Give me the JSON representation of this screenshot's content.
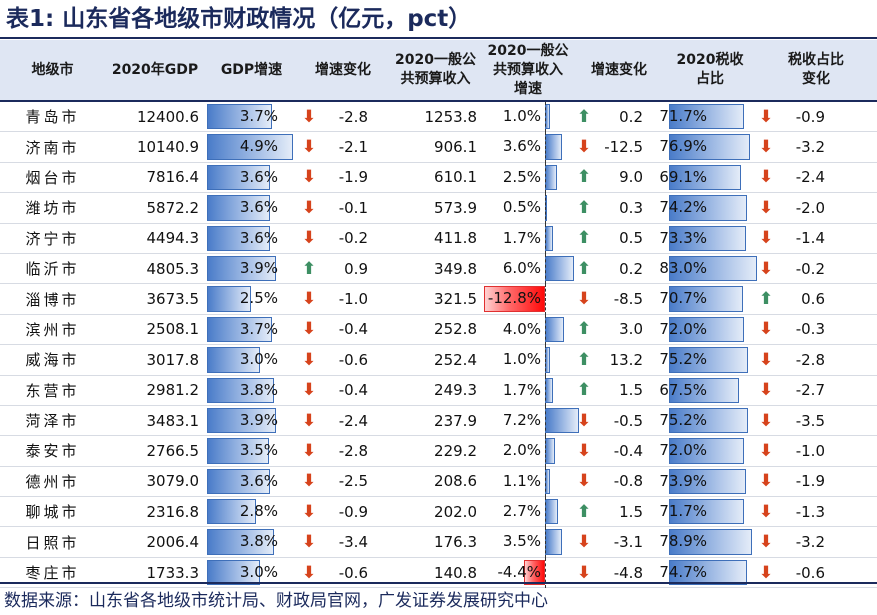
{
  "title": "表1:  山东省各地级市财政情况（亿元，pct）",
  "headers": {
    "city": "地级市",
    "gdp": "2020年GDP",
    "gdp_growth": "GDP增速",
    "gdp_growth_change": "增速变化",
    "revenue_l1": "2020一般公",
    "revenue_l2": "共预算收入",
    "rev_growth_l1": "2020一般公",
    "rev_growth_l2": "共预算收入",
    "rev_growth_l3": "增速",
    "rev_growth_change": "增速变化",
    "tax_share_l1": "2020税收",
    "tax_share_l2": "占比",
    "tax_change_l1": "税收占比",
    "tax_change_l2": "变化"
  },
  "rows": [
    {
      "city": "青岛市",
      "gdp": "12400.6",
      "gdp_growth": "3.7%",
      "gdp_growth_v": 3.7,
      "gdp_chg": "-2.8",
      "gdp_chg_dir": "down",
      "revenue": "1253.8",
      "rev_growth": "1.0%",
      "rev_growth_v": 1.0,
      "rev_chg": "0.2",
      "rev_chg_dir": "up",
      "tax_share": "71.7%",
      "tax_share_v": 71.7,
      "tax_chg": "-0.9",
      "tax_chg_dir": "down"
    },
    {
      "city": "济南市",
      "gdp": "10140.9",
      "gdp_growth": "4.9%",
      "gdp_growth_v": 4.9,
      "gdp_chg": "-2.1",
      "gdp_chg_dir": "down",
      "revenue": "906.1",
      "rev_growth": "3.6%",
      "rev_growth_v": 3.6,
      "rev_chg": "-12.5",
      "rev_chg_dir": "down",
      "tax_share": "76.9%",
      "tax_share_v": 76.9,
      "tax_chg": "-3.2",
      "tax_chg_dir": "down"
    },
    {
      "city": "烟台市",
      "gdp": "7816.4",
      "gdp_growth": "3.6%",
      "gdp_growth_v": 3.6,
      "gdp_chg": "-1.9",
      "gdp_chg_dir": "down",
      "revenue": "610.1",
      "rev_growth": "2.5%",
      "rev_growth_v": 2.5,
      "rev_chg": "9.0",
      "rev_chg_dir": "up",
      "tax_share": "69.1%",
      "tax_share_v": 69.1,
      "tax_chg": "-2.4",
      "tax_chg_dir": "down"
    },
    {
      "city": "潍坊市",
      "gdp": "5872.2",
      "gdp_growth": "3.6%",
      "gdp_growth_v": 3.6,
      "gdp_chg": "-0.1",
      "gdp_chg_dir": "down",
      "revenue": "573.9",
      "rev_growth": "0.5%",
      "rev_growth_v": 0.5,
      "rev_chg": "0.3",
      "rev_chg_dir": "up",
      "tax_share": "74.2%",
      "tax_share_v": 74.2,
      "tax_chg": "-2.0",
      "tax_chg_dir": "down"
    },
    {
      "city": "济宁市",
      "gdp": "4494.3",
      "gdp_growth": "3.6%",
      "gdp_growth_v": 3.6,
      "gdp_chg": "-0.2",
      "gdp_chg_dir": "down",
      "revenue": "411.8",
      "rev_growth": "1.7%",
      "rev_growth_v": 1.7,
      "rev_chg": "0.5",
      "rev_chg_dir": "up",
      "tax_share": "73.3%",
      "tax_share_v": 73.3,
      "tax_chg": "-1.4",
      "tax_chg_dir": "down"
    },
    {
      "city": "临沂市",
      "gdp": "4805.3",
      "gdp_growth": "3.9%",
      "gdp_growth_v": 3.9,
      "gdp_chg": "0.9",
      "gdp_chg_dir": "up",
      "revenue": "349.8",
      "rev_growth": "6.0%",
      "rev_growth_v": 6.0,
      "rev_chg": "0.2",
      "rev_chg_dir": "up",
      "tax_share": "83.0%",
      "tax_share_v": 83.0,
      "tax_chg": "-0.2",
      "tax_chg_dir": "down"
    },
    {
      "city": "淄博市",
      "gdp": "3673.5",
      "gdp_growth": "2.5%",
      "gdp_growth_v": 2.5,
      "gdp_chg": "-1.0",
      "gdp_chg_dir": "down",
      "revenue": "321.5",
      "rev_growth": "-12.8%",
      "rev_growth_v": -12.8,
      "rev_chg": "-8.5",
      "rev_chg_dir": "down",
      "tax_share": "70.7%",
      "tax_share_v": 70.7,
      "tax_chg": "0.6",
      "tax_chg_dir": "up"
    },
    {
      "city": "滨州市",
      "gdp": "2508.1",
      "gdp_growth": "3.7%",
      "gdp_growth_v": 3.7,
      "gdp_chg": "-0.4",
      "gdp_chg_dir": "down",
      "revenue": "252.8",
      "rev_growth": "4.0%",
      "rev_growth_v": 4.0,
      "rev_chg": "3.0",
      "rev_chg_dir": "up",
      "tax_share": "72.0%",
      "tax_share_v": 72.0,
      "tax_chg": "-0.3",
      "tax_chg_dir": "down"
    },
    {
      "city": "威海市",
      "gdp": "3017.8",
      "gdp_growth": "3.0%",
      "gdp_growth_v": 3.0,
      "gdp_chg": "-0.6",
      "gdp_chg_dir": "down",
      "revenue": "252.4",
      "rev_growth": "1.0%",
      "rev_growth_v": 1.0,
      "rev_chg": "13.2",
      "rev_chg_dir": "up",
      "tax_share": "75.2%",
      "tax_share_v": 75.2,
      "tax_chg": "-2.8",
      "tax_chg_dir": "down"
    },
    {
      "city": "东营市",
      "gdp": "2981.2",
      "gdp_growth": "3.8%",
      "gdp_growth_v": 3.8,
      "gdp_chg": "-0.4",
      "gdp_chg_dir": "down",
      "revenue": "249.3",
      "rev_growth": "1.7%",
      "rev_growth_v": 1.7,
      "rev_chg": "1.5",
      "rev_chg_dir": "up",
      "tax_share": "67.5%",
      "tax_share_v": 67.5,
      "tax_chg": "-2.7",
      "tax_chg_dir": "down"
    },
    {
      "city": "菏泽市",
      "gdp": "3483.1",
      "gdp_growth": "3.9%",
      "gdp_growth_v": 3.9,
      "gdp_chg": "-2.4",
      "gdp_chg_dir": "down",
      "revenue": "237.9",
      "rev_growth": "7.2%",
      "rev_growth_v": 7.2,
      "rev_chg": "-0.5",
      "rev_chg_dir": "down",
      "tax_share": "75.2%",
      "tax_share_v": 75.2,
      "tax_chg": "-3.5",
      "tax_chg_dir": "down"
    },
    {
      "city": "泰安市",
      "gdp": "2766.5",
      "gdp_growth": "3.5%",
      "gdp_growth_v": 3.5,
      "gdp_chg": "-2.8",
      "gdp_chg_dir": "down",
      "revenue": "229.2",
      "rev_growth": "2.0%",
      "rev_growth_v": 2.0,
      "rev_chg": "-0.4",
      "rev_chg_dir": "down",
      "tax_share": "72.0%",
      "tax_share_v": 72.0,
      "tax_chg": "-1.0",
      "tax_chg_dir": "down"
    },
    {
      "city": "德州市",
      "gdp": "3079.0",
      "gdp_growth": "3.6%",
      "gdp_growth_v": 3.6,
      "gdp_chg": "-2.5",
      "gdp_chg_dir": "down",
      "revenue": "208.6",
      "rev_growth": "1.1%",
      "rev_growth_v": 1.1,
      "rev_chg": "-0.8",
      "rev_chg_dir": "down",
      "tax_share": "73.9%",
      "tax_share_v": 73.9,
      "tax_chg": "-1.9",
      "tax_chg_dir": "down"
    },
    {
      "city": "聊城市",
      "gdp": "2316.8",
      "gdp_growth": "2.8%",
      "gdp_growth_v": 2.8,
      "gdp_chg": "-0.9",
      "gdp_chg_dir": "down",
      "revenue": "202.0",
      "rev_growth": "2.7%",
      "rev_growth_v": 2.7,
      "rev_chg": "1.5",
      "rev_chg_dir": "up",
      "tax_share": "71.7%",
      "tax_share_v": 71.7,
      "tax_chg": "-1.3",
      "tax_chg_dir": "down"
    },
    {
      "city": "日照市",
      "gdp": "2006.4",
      "gdp_growth": "3.8%",
      "gdp_growth_v": 3.8,
      "gdp_chg": "-3.4",
      "gdp_chg_dir": "down",
      "revenue": "176.3",
      "rev_growth": "3.5%",
      "rev_growth_v": 3.5,
      "rev_chg": "-3.1",
      "rev_chg_dir": "down",
      "tax_share": "78.9%",
      "tax_share_v": 78.9,
      "tax_chg": "-3.2",
      "tax_chg_dir": "down"
    },
    {
      "city": "枣庄市",
      "gdp": "1733.3",
      "gdp_growth": "3.0%",
      "gdp_growth_v": 3.0,
      "gdp_chg": "-0.6",
      "gdp_chg_dir": "down",
      "revenue": "140.8",
      "rev_growth": "-4.4%",
      "rev_growth_v": -4.4,
      "rev_chg": "-4.8",
      "rev_chg_dir": "down",
      "tax_share": "74.7%",
      "tax_share_v": 74.7,
      "tax_chg": "-0.6",
      "tax_chg_dir": "down"
    }
  ],
  "colors": {
    "bar_blue": "#4a7cc9",
    "bar_red": "#ff0a0a",
    "arrow_up": "#3d8f63",
    "arrow_down": "#d6431c",
    "header_bg": "#dfe6f3",
    "title": "#1b2a5c"
  },
  "source": "数据来源：山东省各地级市统计局、财政局官网，广发证券发展研究中心"
}
